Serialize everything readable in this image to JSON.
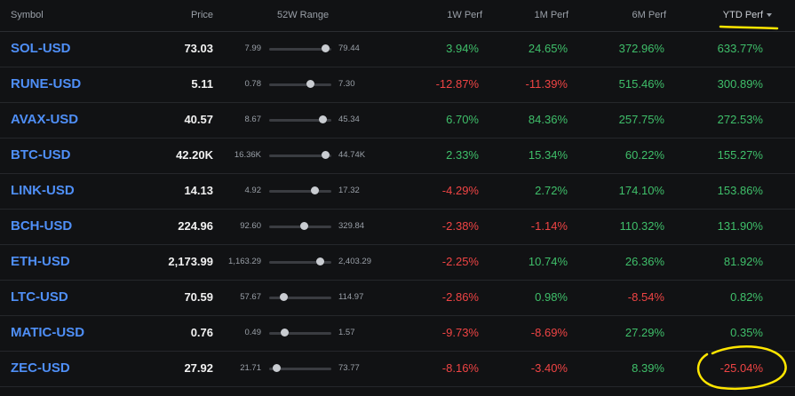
{
  "columns": {
    "symbol": "Symbol",
    "price": "Price",
    "range": "52W Range",
    "w1": "1W Perf",
    "m1": "1M Perf",
    "m6": "6M Perf",
    "ytd": "YTD Perf"
  },
  "rows": [
    {
      "symbol": "SOL-USD",
      "price": "73.03",
      "low": "7.99",
      "high": "79.44",
      "range_pos": 0.91,
      "w1": "3.94%",
      "m1": "24.65%",
      "m6": "372.96%",
      "ytd": "633.77%"
    },
    {
      "symbol": "RUNE-USD",
      "price": "5.11",
      "low": "0.78",
      "high": "7.30",
      "range_pos": 0.66,
      "w1": "-12.87%",
      "m1": "-11.39%",
      "m6": "515.46%",
      "ytd": "300.89%"
    },
    {
      "symbol": "AVAX-USD",
      "price": "40.57",
      "low": "8.67",
      "high": "45.34",
      "range_pos": 0.87,
      "w1": "6.70%",
      "m1": "84.36%",
      "m6": "257.75%",
      "ytd": "272.53%"
    },
    {
      "symbol": "BTC-USD",
      "price": "42.20K",
      "low": "16.36K",
      "high": "44.74K",
      "range_pos": 0.91,
      "w1": "2.33%",
      "m1": "15.34%",
      "m6": "60.22%",
      "ytd": "155.27%"
    },
    {
      "symbol": "LINK-USD",
      "price": "14.13",
      "low": "4.92",
      "high": "17.32",
      "range_pos": 0.74,
      "w1": "-4.29%",
      "m1": "2.72%",
      "m6": "174.10%",
      "ytd": "153.86%"
    },
    {
      "symbol": "BCH-USD",
      "price": "224.96",
      "low": "92.60",
      "high": "329.84",
      "range_pos": 0.56,
      "w1": "-2.38%",
      "m1": "-1.14%",
      "m6": "110.32%",
      "ytd": "131.90%"
    },
    {
      "symbol": "ETH-USD",
      "price": "2,173.99",
      "low": "1,163.29",
      "high": "2,403.29",
      "range_pos": 0.82,
      "w1": "-2.25%",
      "m1": "10.74%",
      "m6": "26.36%",
      "ytd": "81.92%"
    },
    {
      "symbol": "LTC-USD",
      "price": "70.59",
      "low": "57.67",
      "high": "114.97",
      "range_pos": 0.23,
      "w1": "-2.86%",
      "m1": "0.98%",
      "m6": "-8.54%",
      "ytd": "0.82%"
    },
    {
      "symbol": "MATIC-USD",
      "price": "0.76",
      "low": "0.49",
      "high": "1.57",
      "range_pos": 0.25,
      "w1": "-9.73%",
      "m1": "-8.69%",
      "m6": "27.29%",
      "ytd": "0.35%"
    },
    {
      "symbol": "ZEC-USD",
      "price": "27.92",
      "low": "21.71",
      "high": "73.77",
      "range_pos": 0.12,
      "w1": "-8.16%",
      "m1": "-3.40%",
      "m6": "8.39%",
      "ytd": "-25.04%"
    }
  ],
  "colors": {
    "positive": "#3fbf6a",
    "negative": "#ef4444",
    "symbol": "#4f8ff7",
    "annotation": "#ffe600"
  },
  "sort": {
    "column": "ytd",
    "direction": "desc",
    "icon": "caret-down-icon"
  }
}
